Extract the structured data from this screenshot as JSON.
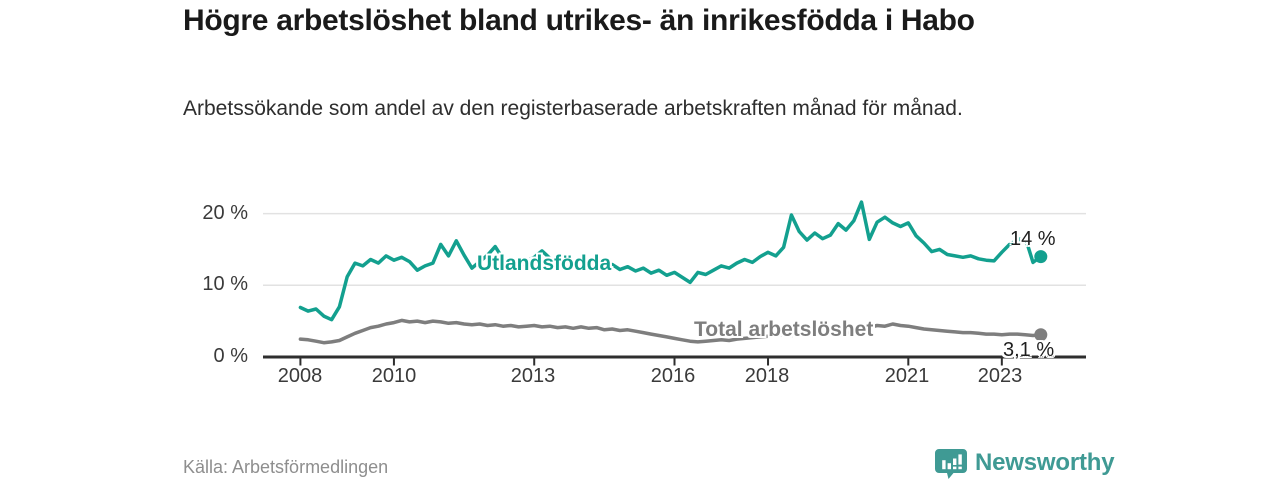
{
  "chart_data": {
    "type": "line",
    "title": "Högre arbetslöshet bland utrikes- än inrikesfödda i Habo",
    "subtitle": "Arbetssökande som andel av den registerbaserade arbetskraften månad för månad.",
    "source": "Källa: Arbetsförmedlingen",
    "xlabel": "",
    "ylabel": "",
    "grid": "horizontal",
    "legend_position": "inline-on-line",
    "xlim": [
      2007.2,
      2024.8
    ],
    "ylim": [
      0,
      22.4
    ],
    "x_ticks": [
      {
        "value": 2008,
        "label": "2008"
      },
      {
        "value": 2010,
        "label": "2010"
      },
      {
        "value": 2013,
        "label": "2013"
      },
      {
        "value": 2016,
        "label": "2016"
      },
      {
        "value": 2018,
        "label": "2018"
      },
      {
        "value": 2021,
        "label": "2021"
      },
      {
        "value": 2023,
        "label": "2023"
      }
    ],
    "y_ticks": [
      {
        "value": 0,
        "label": "0 %"
      },
      {
        "value": 10,
        "label": "10 %"
      },
      {
        "value": 20,
        "label": "20 %"
      }
    ],
    "x_start": 2008.0,
    "x_step_years": 0.166667,
    "series": [
      {
        "name": "Utlandsfödda",
        "color": "#13a08f",
        "end_label": "14 %",
        "last_value": 14.0,
        "values": [
          6.9,
          6.4,
          6.7,
          5.7,
          5.2,
          7.0,
          11.2,
          13.1,
          12.7,
          13.6,
          13.1,
          14.1,
          13.5,
          13.9,
          13.3,
          12.1,
          12.7,
          13.1,
          15.7,
          14.1,
          16.2,
          14.2,
          12.4,
          13.3,
          14.2,
          15.4,
          13.7,
          12.9,
          12.4,
          13.4,
          13.9,
          14.8,
          13.8,
          13.3,
          13.7,
          13.0,
          13.4,
          12.8,
          13.2,
          12.5,
          12.9,
          12.2,
          12.6,
          12.0,
          12.4,
          11.7,
          12.1,
          11.4,
          11.8,
          11.1,
          10.4,
          11.8,
          11.5,
          12.1,
          12.7,
          12.4,
          13.1,
          13.6,
          13.2,
          14.0,
          14.6,
          14.1,
          15.3,
          19.8,
          17.5,
          16.3,
          17.3,
          16.5,
          17.0,
          18.6,
          17.7,
          19.0,
          21.6,
          16.4,
          18.8,
          19.5,
          18.7,
          18.2,
          18.7,
          16.9,
          15.9,
          14.7,
          15.0,
          14.3,
          14.1,
          13.9,
          14.1,
          13.7,
          13.5,
          13.4,
          14.6,
          15.7,
          16.3,
          16.7,
          13.2,
          14.0
        ]
      },
      {
        "name": "Total arbetslöshet",
        "color": "#7e7e7e",
        "end_label": "3,1 %",
        "last_value": 3.1,
        "values": [
          2.5,
          2.4,
          2.2,
          2.0,
          2.1,
          2.3,
          2.8,
          3.3,
          3.7,
          4.1,
          4.3,
          4.6,
          4.8,
          5.1,
          4.9,
          5.0,
          4.8,
          5.0,
          4.9,
          4.7,
          4.8,
          4.6,
          4.5,
          4.6,
          4.4,
          4.5,
          4.3,
          4.4,
          4.2,
          4.3,
          4.4,
          4.2,
          4.3,
          4.1,
          4.2,
          4.0,
          4.2,
          4.0,
          4.1,
          3.8,
          3.9,
          3.7,
          3.8,
          3.6,
          3.4,
          3.2,
          3.0,
          2.8,
          2.6,
          2.4,
          2.2,
          2.1,
          2.2,
          2.3,
          2.4,
          2.3,
          2.5,
          2.6,
          2.7,
          2.8,
          2.9,
          3.0,
          3.1,
          3.0,
          3.2,
          3.3,
          3.2,
          3.3,
          3.4,
          3.3,
          3.4,
          3.5,
          3.7,
          4.1,
          4.4,
          4.3,
          4.6,
          4.4,
          4.3,
          4.1,
          3.9,
          3.8,
          3.7,
          3.6,
          3.5,
          3.4,
          3.4,
          3.3,
          3.2,
          3.2,
          3.1,
          3.2,
          3.2,
          3.1,
          3.0,
          3.1
        ]
      }
    ],
    "colors": {
      "gridline": "#e2e2e2",
      "axis": "#2e2e2e",
      "title_text": "#1a1a1a",
      "tick_text": "#3a3a3a",
      "source_text": "#8e8e8e"
    }
  },
  "branding": {
    "logo_text": "Newsworthy",
    "logo_color": "#3f9a94",
    "icon": "bar-chart-speech-bubble"
  }
}
